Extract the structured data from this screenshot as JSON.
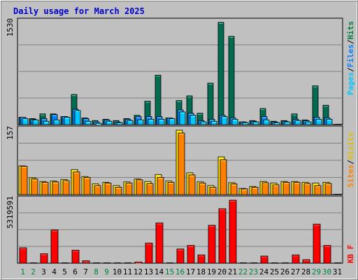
{
  "title": "Daily usage for March 2025",
  "colors": {
    "background": "#ffffff",
    "frame": "#c0c0c0",
    "panel_bg": "#c0c0c0",
    "gridline": "#808080",
    "title": "#0000cc",
    "hits": "#006b4f",
    "files": "#0080ff",
    "pages": "#00c8ff",
    "visits": "#ffe000",
    "sites": "#ff8000",
    "kbytes": "#ff0000",
    "weekday_label": "#000000",
    "weekend_label": "#008040",
    "separator_slash": "#000000"
  },
  "legend": {
    "top": [
      {
        "name": "Pages",
        "color": "#00c8ff"
      },
      {
        "name": "Files",
        "color": "#0080ff"
      },
      {
        "name": "Hits",
        "color": "#008040"
      }
    ],
    "middle": [
      {
        "name": "Sites",
        "color": "#ff8000"
      },
      {
        "name": "Visits",
        "color": "#e0c000"
      }
    ],
    "bottom": [
      {
        "name": "KB F",
        "color": "#ff0000"
      }
    ],
    "separator": "/"
  },
  "chart_data": [
    {
      "type": "bar",
      "name": "hits-files-pages",
      "axis_max_label": "1530",
      "ylim": [
        0,
        1530
      ],
      "categories": [
        "1",
        "2",
        "3",
        "4",
        "5",
        "6",
        "7",
        "8",
        "9",
        "10",
        "11",
        "12",
        "13",
        "14",
        "15",
        "16",
        "17",
        "18",
        "19",
        "20",
        "21",
        "22",
        "23",
        "24",
        "25",
        "26",
        "27",
        "28",
        "29",
        "30",
        "31"
      ],
      "series": [
        {
          "name": "Hits",
          "values": [
            110,
            90,
            160,
            160,
            120,
            450,
            100,
            60,
            80,
            60,
            90,
            140,
            350,
            740,
            100,
            360,
            430,
            170,
            620,
            1530,
            1320,
            40,
            60,
            240,
            50,
            60,
            160,
            70,
            580,
            290,
            0
          ]
        },
        {
          "name": "Files",
          "values": [
            110,
            80,
            90,
            150,
            120,
            230,
            90,
            40,
            70,
            40,
            80,
            120,
            120,
            120,
            100,
            220,
            170,
            60,
            80,
            140,
            100,
            40,
            50,
            120,
            40,
            50,
            80,
            60,
            110,
            100,
            0
          ]
        },
        {
          "name": "Pages",
          "values": [
            90,
            70,
            50,
            70,
            110,
            210,
            50,
            20,
            50,
            30,
            60,
            70,
            80,
            80,
            90,
            190,
            140,
            40,
            50,
            120,
            80,
            30,
            40,
            70,
            30,
            40,
            60,
            40,
            80,
            80,
            0
          ]
        }
      ]
    },
    {
      "type": "bar",
      "name": "visits-sites",
      "axis_max_label": "157",
      "ylim": [
        0,
        157
      ],
      "categories": [
        "1",
        "2",
        "3",
        "4",
        "5",
        "6",
        "7",
        "8",
        "9",
        "10",
        "11",
        "12",
        "13",
        "14",
        "15",
        "16",
        "17",
        "18",
        "19",
        "20",
        "21",
        "22",
        "23",
        "24",
        "25",
        "26",
        "27",
        "28",
        "29",
        "30",
        "31"
      ],
      "series": [
        {
          "name": "Visits",
          "values": [
            70,
            41,
            32,
            33,
            37,
            61,
            44,
            26,
            30,
            22,
            31,
            38,
            32,
            49,
            33,
            157,
            53,
            31,
            22,
            92,
            29,
            15,
            20,
            32,
            28,
            32,
            32,
            30,
            28,
            30,
            0
          ]
        },
        {
          "name": "Sites",
          "values": [
            69,
            38,
            30,
            31,
            34,
            55,
            42,
            22,
            28,
            18,
            28,
            36,
            27,
            42,
            30,
            150,
            48,
            28,
            18,
            85,
            26,
            14,
            18,
            29,
            24,
            30,
            30,
            27,
            22,
            27,
            0
          ]
        }
      ]
    },
    {
      "type": "bar",
      "name": "kbytes",
      "axis_max_label": "5319591",
      "ylim": [
        0,
        5319591
      ],
      "categories": [
        "1",
        "2",
        "3",
        "4",
        "5",
        "6",
        "7",
        "8",
        "9",
        "10",
        "11",
        "12",
        "13",
        "14",
        "15",
        "16",
        "17",
        "18",
        "19",
        "20",
        "21",
        "22",
        "23",
        "24",
        "25",
        "26",
        "27",
        "28",
        "29",
        "30",
        "31"
      ],
      "series": [
        {
          "name": "KB F",
          "values": [
            1300000,
            40000,
            800000,
            2800000,
            40000,
            1100000,
            200000,
            40000,
            40000,
            40000,
            40000,
            100000,
            1700000,
            3400000,
            40000,
            1200000,
            1500000,
            700000,
            3200000,
            4600000,
            5319591,
            40000,
            40000,
            600000,
            40000,
            40000,
            700000,
            300000,
            3300000,
            1500000,
            0
          ]
        }
      ]
    }
  ],
  "weekend_days": [
    "1",
    "2",
    "8",
    "9",
    "15",
    "16",
    "22",
    "23",
    "29",
    "30"
  ]
}
